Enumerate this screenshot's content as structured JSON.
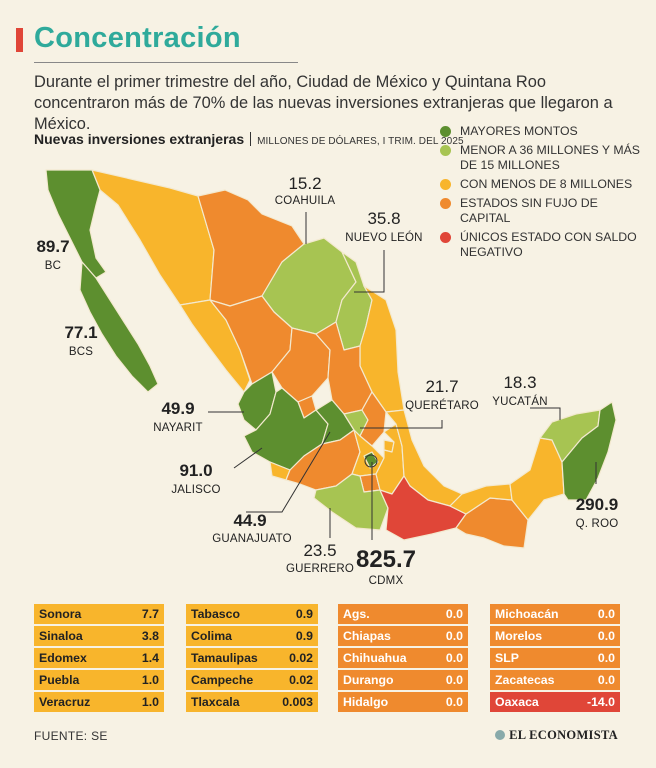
{
  "title": "Concentración",
  "subtitle": "Durante el primer trimestre del año, Ciudad de México y Quintana Roo  concentraron más de 70% de las nuevas inversiones extranjeras que llegaron a México.",
  "map_title": "Nuevas inversiones extranjeras",
  "map_unit": "MILLONES DE DÓLARES, I TRIM. DEL 2025",
  "colors": {
    "mayores": "#5d8f2f",
    "menor36": "#a7c452",
    "menos8": "#f8b52c",
    "sin_flujo": "#ef8a2e",
    "negativo": "#e04638"
  },
  "legend": [
    {
      "key": "mayores",
      "label": "MAYORES MONTOS"
    },
    {
      "key": "menor36",
      "label": "MENOR A 36 MILLONES Y MÁS DE 15 MILLONES"
    },
    {
      "key": "menos8",
      "label": "CON MENOS DE 8 MILLONES"
    },
    {
      "key": "sin_flujo",
      "label": "ESTADOS SIN FUJO DE CAPITAL"
    },
    {
      "key": "negativo",
      "label": "ÚNICOS ESTADO CON SALDO NEGATIVO"
    }
  ],
  "callouts": {
    "bc": {
      "value": "89.7",
      "name": "BC"
    },
    "bcs": {
      "value": "77.1",
      "name": "BCS"
    },
    "coahuila": {
      "value": "15.2",
      "name": "COAHUILA"
    },
    "nuevo_leon": {
      "value": "35.8",
      "name": "NUEVO LEÓN"
    },
    "nayarit": {
      "value": "49.9",
      "name": "NAYARIT"
    },
    "jalisco": {
      "value": "91.0",
      "name": "JALISCO"
    },
    "guanajuato": {
      "value": "44.9",
      "name": "GUANAJUATO"
    },
    "queretaro": {
      "value": "21.7",
      "name": "QUERÉTARO"
    },
    "guerrero": {
      "value": "23.5",
      "name": "GUERRERO"
    },
    "cdmx": {
      "value": "825.7",
      "name": "CDMX"
    },
    "yucatan": {
      "value": "18.3",
      "name": "YUCATÁN"
    },
    "qroo": {
      "value": "290.9",
      "name": "Q. ROO"
    }
  },
  "tables": [
    {
      "style": "yellow",
      "rows": [
        {
          "name": "Sonora",
          "value": "7.7"
        },
        {
          "name": "Sinaloa",
          "value": "3.8"
        },
        {
          "name": "Edomex",
          "value": "1.4"
        },
        {
          "name": "Puebla",
          "value": "1.0"
        },
        {
          "name": "Veracruz",
          "value": "1.0"
        }
      ]
    },
    {
      "style": "yellow",
      "rows": [
        {
          "name": "Tabasco",
          "value": "0.9"
        },
        {
          "name": "Colima",
          "value": "0.9"
        },
        {
          "name": "Tamaulipas",
          "value": "0.02"
        },
        {
          "name": "Campeche",
          "value": "0.02"
        },
        {
          "name": "Tlaxcala",
          "value": "0.003"
        }
      ]
    },
    {
      "style": "orange",
      "rows": [
        {
          "name": "Ags.",
          "value": "0.0"
        },
        {
          "name": "Chiapas",
          "value": "0.0"
        },
        {
          "name": "Chihuahua",
          "value": "0.0"
        },
        {
          "name": "Durango",
          "value": "0.0"
        },
        {
          "name": "Hidalgo",
          "value": "0.0"
        }
      ]
    },
    {
      "style": "orange",
      "rows": [
        {
          "name": "Michoacán",
          "value": "0.0"
        },
        {
          "name": "Morelos",
          "value": "0.0"
        },
        {
          "name": "SLP",
          "value": "0.0"
        },
        {
          "name": "Zacatecas",
          "value": "0.0"
        },
        {
          "name": "Oaxaca",
          "value": "-14.0",
          "highlight": "negativo"
        }
      ]
    }
  ],
  "source": "FUENTE: SE",
  "brand": "EL ECONOMISTA"
}
